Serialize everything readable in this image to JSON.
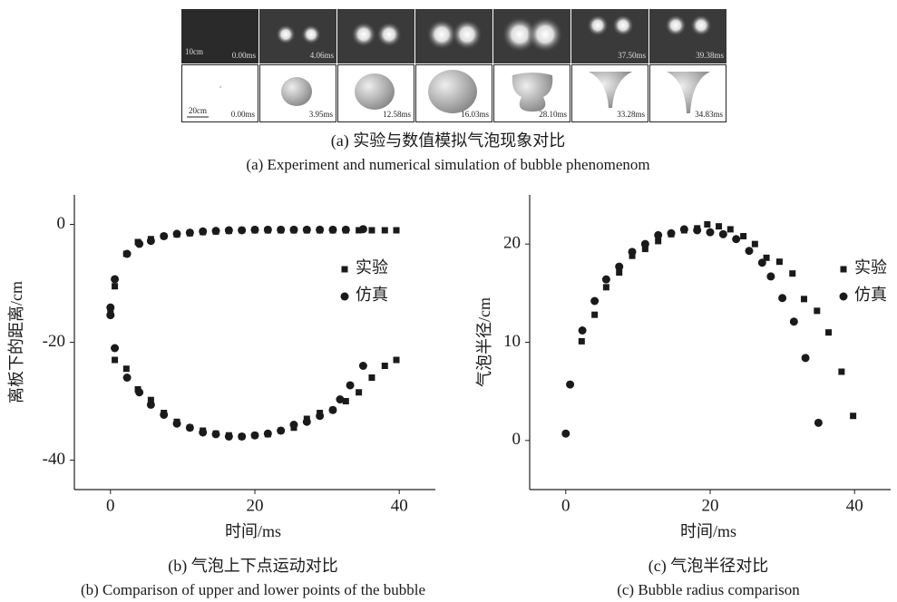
{
  "panel_a": {
    "experiment_times": [
      "0.00ms",
      "4.06ms",
      null,
      null,
      null,
      "37.50ms",
      "39.38ms"
    ],
    "experiment_scale": "10cm",
    "simulation_times": [
      "0.00ms",
      "3.95ms",
      "12.58ms",
      "16.03ms",
      "28.10ms",
      "33.28ms",
      "34.83ms"
    ],
    "simulation_scale": "20cm",
    "caption": "(a) 实验与数值模拟气泡现象对比",
    "caption_en": "(a) Experiment and numerical simulation of bubble phenomenom"
  },
  "chart_data": [
    {
      "type": "scatter",
      "x_label": "时间/ms",
      "y_label": "离板下的距离/cm",
      "caption": "(b) 气泡上下点运动对比",
      "caption_en": "(b) Comparison of upper and lower points of the bubble",
      "xlim": [
        -5,
        45
      ],
      "xticks": [
        0,
        20,
        40
      ],
      "ylim": [
        -45,
        5
      ],
      "yticks": [
        0,
        -20,
        -40
      ],
      "legend": "upper right",
      "series": [
        {
          "name": "实验",
          "marker": "square",
          "color": "#1a1a1a",
          "x": [
            0,
            0.6,
            2.2,
            3.8,
            5.6,
            7.4,
            9.2,
            11,
            12.8,
            14.6,
            16.4,
            18.2,
            20,
            21.8,
            23.6,
            25.4,
            27.2,
            29,
            30.8,
            32.6,
            34.4,
            36.2,
            38,
            39.6,
            0.6,
            2.2,
            3.8,
            5.6,
            7.4,
            9.2,
            11,
            12.8,
            14.6,
            16.4,
            18.2,
            20,
            21.8,
            23.6,
            25.4,
            27.2,
            29,
            30.8,
            32.6,
            34.4,
            36.2,
            38,
            39.6
          ],
          "values": [
            -15,
            -10.5,
            -5,
            -3,
            -2.5,
            -2,
            -1.7,
            -1.5,
            -1.3,
            -1.2,
            -1.1,
            -1,
            -1,
            -1,
            -1,
            -1,
            -1,
            -1,
            -1,
            -1,
            -1,
            -1,
            -1,
            -1,
            -23,
            -24.5,
            -28,
            -29.8,
            -32,
            -33.5,
            -34.5,
            -35,
            -35.5,
            -35.8,
            -36,
            -35.8,
            -35.6,
            -35,
            -34.5,
            -33,
            -32,
            -31.5,
            -30,
            -28.5,
            -26,
            -24,
            -23
          ]
        },
        {
          "name": "仿真",
          "marker": "circle",
          "color": "#1a1a1a",
          "x": [
            0,
            0,
            0.6,
            2.3,
            4,
            5.6,
            7.4,
            9.2,
            11,
            12.8,
            14.6,
            16.4,
            18.2,
            20,
            21.8,
            23.6,
            25.4,
            27.2,
            29,
            30.8,
            32.6,
            35,
            0.6,
            2.3,
            4,
            5.6,
            7.4,
            9.2,
            11,
            12.8,
            14.6,
            16.4,
            18.2,
            20,
            21.8,
            23.6,
            25.4,
            27.2,
            29,
            30.8,
            31.8,
            33.2,
            35
          ],
          "values": [
            -14.1,
            -15.4,
            -9.3,
            -5,
            -3.3,
            -2.8,
            -2,
            -1.6,
            -1.4,
            -1.2,
            -1.1,
            -1,
            -1,
            -0.9,
            -0.9,
            -0.9,
            -0.9,
            -0.9,
            -0.9,
            -0.9,
            -0.9,
            -0.8,
            -21,
            -26,
            -28.5,
            -30.6,
            -32.3,
            -33.8,
            -34.5,
            -35.3,
            -35.6,
            -36,
            -36,
            -35.8,
            -35.5,
            -35,
            -34,
            -33.5,
            -32.5,
            -31.5,
            -29.7,
            -27.3,
            -24
          ]
        }
      ]
    },
    {
      "type": "scatter",
      "x_label": "时间/ms",
      "y_label": "气泡半径/cm",
      "caption": "(c) 气泡半径对比",
      "caption_en": "(c) Bubble radius comparison",
      "xlim": [
        -5,
        45
      ],
      "xticks": [
        0,
        20,
        40
      ],
      "ylim": [
        -5,
        25
      ],
      "yticks": [
        0,
        10,
        20
      ],
      "legend": "upper right",
      "series": [
        {
          "name": "实验",
          "marker": "square",
          "color": "#1a1a1a",
          "x": [
            2.2,
            4,
            5.6,
            7.4,
            9.2,
            11,
            12.8,
            14.6,
            16.4,
            18.2,
            19.6,
            21.2,
            22.8,
            24.6,
            26.2,
            27.8,
            29.6,
            31.4,
            33,
            34.8,
            36.4,
            38.2,
            39.8
          ],
          "values": [
            10.1,
            12.8,
            15.6,
            17.1,
            18.8,
            19.5,
            20.3,
            21,
            21.4,
            21.6,
            22,
            21.8,
            21.5,
            20.8,
            20,
            18.6,
            18.2,
            17,
            14.4,
            13.2,
            11,
            7,
            2.5
          ]
        },
        {
          "name": "仿真",
          "marker": "circle",
          "color": "#1a1a1a",
          "x": [
            0,
            0.6,
            2.3,
            4,
            5.6,
            7.4,
            9.2,
            11,
            12.8,
            14.6,
            16.4,
            18.2,
            20,
            21.8,
            23.6,
            25.4,
            27.2,
            28.4,
            30,
            31.6,
            33.2,
            35
          ],
          "values": [
            0.7,
            5.7,
            11.2,
            14.2,
            16.4,
            17.7,
            19.2,
            20,
            20.9,
            21.1,
            21.5,
            21.4,
            21.2,
            21,
            20.5,
            19.3,
            18.1,
            16.7,
            14.5,
            12.1,
            8.4,
            1.8
          ]
        }
      ]
    }
  ]
}
